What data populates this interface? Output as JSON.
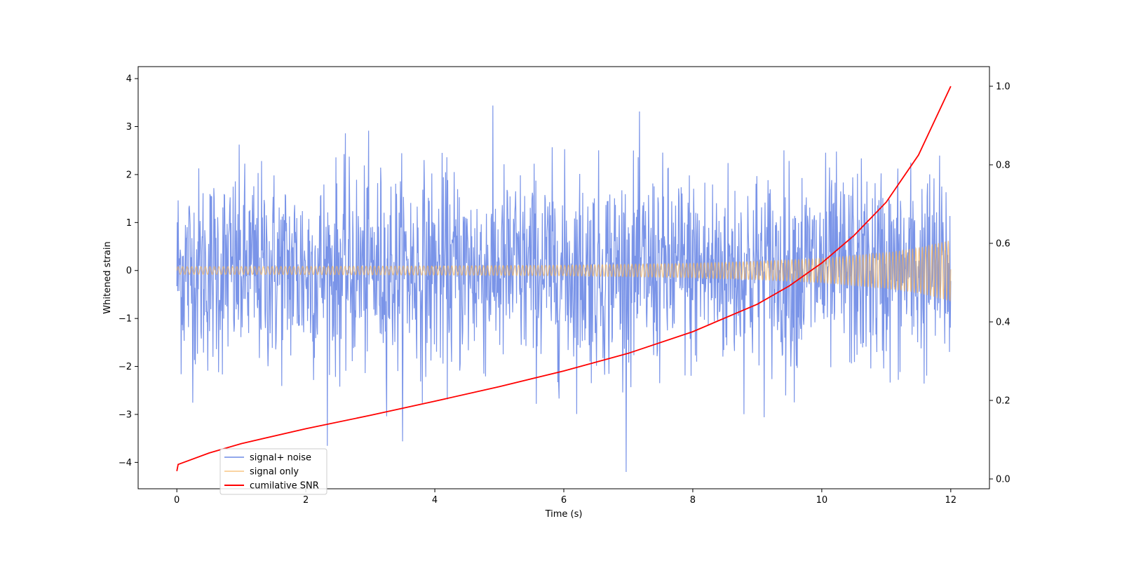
{
  "chart_data": {
    "type": "line",
    "title": "",
    "xlabel": "Time (s)",
    "ylabel": "Whitened strain",
    "y2label": "",
    "xlim": [
      -0.6,
      12.6
    ],
    "ylim": [
      -4.55,
      4.25
    ],
    "y2lim": [
      -0.025,
      1.05
    ],
    "x_ticks": [
      0,
      2,
      4,
      6,
      8,
      10,
      12
    ],
    "y_ticks": [
      -4,
      -3,
      -2,
      -1,
      0,
      1,
      2,
      3,
      4
    ],
    "y2_ticks": [
      0.0,
      0.2,
      0.4,
      0.6,
      0.8,
      1.0
    ],
    "y_tick_labels": [
      "−4",
      "−3",
      "−2",
      "−1",
      "0",
      "1",
      "2",
      "3",
      "4"
    ],
    "y2_tick_labels": [
      "0.0",
      "0.2",
      "0.4",
      "0.6",
      "0.8",
      "1.0"
    ],
    "grid": false,
    "legend_position": "lower-left",
    "series": [
      {
        "name": "signal+ noise",
        "axis": "left",
        "color": "#6f8be6",
        "kind": "noisy-envelope",
        "amplitude_range_approx": [
          -4.2,
          3.85
        ],
        "x_range": [
          0,
          12
        ]
      },
      {
        "name": "signal only",
        "axis": "left",
        "color": "#f5b35a",
        "kind": "chirp-envelope",
        "x": [
          0,
          2,
          4,
          6,
          8,
          9,
          10,
          11,
          11.5,
          12
        ],
        "envelope": [
          0.08,
          0.085,
          0.095,
          0.11,
          0.15,
          0.19,
          0.25,
          0.37,
          0.47,
          0.63
        ]
      },
      {
        "name": "cumilative SNR",
        "axis": "right",
        "color": "#ff0000",
        "kind": "line",
        "x": [
          0,
          0.02,
          0.5,
          1,
          2,
          3,
          4,
          5,
          6,
          7,
          8,
          9,
          9.5,
          10,
          10.5,
          11,
          11.5,
          12
        ],
        "y": [
          0.02,
          0.037,
          0.066,
          0.09,
          0.128,
          0.162,
          0.198,
          0.235,
          0.275,
          0.32,
          0.375,
          0.445,
          0.492,
          0.55,
          0.62,
          0.705,
          0.825,
          1.0
        ]
      }
    ]
  }
}
